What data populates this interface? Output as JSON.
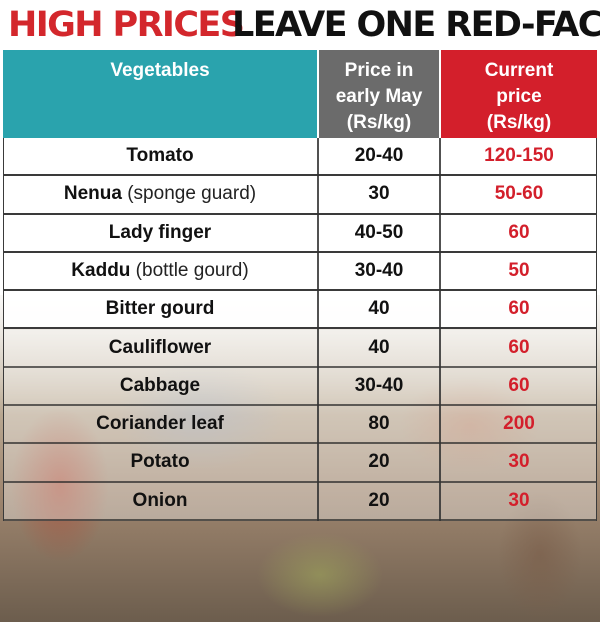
{
  "headline": {
    "part1": "HIGH PRICES",
    "part2": "LEAVE ONE RED-FACED"
  },
  "table": {
    "headers": {
      "vegetables": "Vegetables",
      "may_line1": "Price in",
      "may_line2": "early May",
      "may_line3": "(Rs/kg)",
      "current_line1": "Current",
      "current_line2": "price",
      "current_line3": "(Rs/kg)"
    },
    "rows": [
      {
        "name": "Tomato",
        "note": "",
        "may": "20-40",
        "current": "120-150"
      },
      {
        "name": "Nenua",
        "note": " (sponge guard)",
        "may": "30",
        "current": "50-60"
      },
      {
        "name": "Lady finger",
        "note": "",
        "may": "40-50",
        "current": "60"
      },
      {
        "name": "Kaddu",
        "note": " (bottle gourd)",
        "may": "30-40",
        "current": "50"
      },
      {
        "name": "Bitter gourd",
        "note": "",
        "may": "40",
        "current": "60"
      },
      {
        "name": "Cauliflower",
        "note": "",
        "may": "40",
        "current": "60"
      },
      {
        "name": "Cabbage",
        "note": "",
        "may": "30-40",
        "current": "60"
      },
      {
        "name": "Coriander leaf",
        "note": "",
        "may": "80",
        "current": "200"
      },
      {
        "name": "Potato",
        "note": "",
        "may": "20",
        "current": "30"
      },
      {
        "name": "Onion",
        "note": "",
        "may": "20",
        "current": "30"
      }
    ]
  },
  "colors": {
    "headline_red": "#d3272c",
    "header_teal": "#2aa3ad",
    "header_gray": "#6b6b6b",
    "header_red": "#d31f2b",
    "current_price_red": "#d31f2b"
  }
}
